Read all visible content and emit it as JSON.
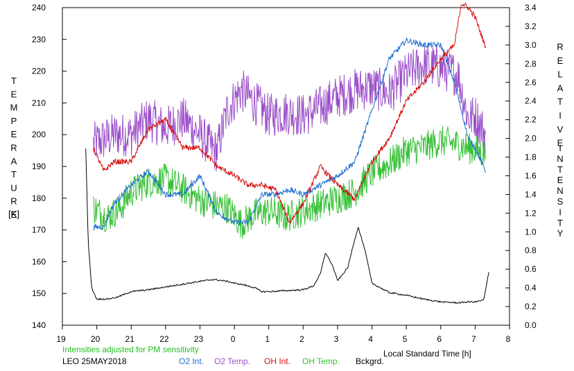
{
  "chart_data": {
    "type": "line",
    "title": "",
    "left_axis": {
      "label_letters": [
        "T",
        "E",
        "M",
        "P",
        "E",
        "R",
        "A",
        "T",
        "U",
        "R",
        "E"
      ],
      "unit": "[K]",
      "ticks": [
        "140",
        "150",
        "160",
        "170",
        "180",
        "190",
        "200",
        "210",
        "220",
        "230",
        "240"
      ],
      "range": [
        140,
        240
      ]
    },
    "right_axis": {
      "label_letters_1": [
        "R",
        "E",
        "L",
        "A",
        "T",
        "I",
        "V",
        "E"
      ],
      "label_letters_2": [
        "I",
        "N",
        "T",
        "E",
        "N",
        "S",
        "I",
        "T",
        "Y"
      ],
      "ticks": [
        "0.0",
        "0.2",
        "0.4",
        "0.6",
        "0.8",
        "1.0",
        "1.2",
        "1.4",
        "1.6",
        "1.8",
        "2.0",
        "2.2",
        "2.4",
        "2.6",
        "2.8",
        "3.0",
        "3.2",
        "3.4"
      ],
      "range": [
        0.0,
        3.4
      ]
    },
    "x_axis": {
      "label": "Local Standard Time [h]",
      "ticks": [
        "19",
        "20",
        "21",
        "22",
        "23",
        "0",
        "1",
        "2",
        "3",
        "4",
        "5",
        "6",
        "7",
        "8"
      ],
      "range_hours": [
        19,
        32
      ]
    },
    "note": "Intensities adjusted for PM sensitivity",
    "station": "LEO  25MAY2018",
    "legend": [
      "O2 Int.",
      "O2 Temp.",
      "OH Int.",
      "OH Temp.",
      "Bckgrd."
    ],
    "colors": {
      "o2_int": "#1e6fd0",
      "o2_temp": "#9a4fc9",
      "oh_int": "#d81010",
      "oh_temp": "#35c035",
      "bckgrd": "#000000",
      "note": "#20c020"
    },
    "series": [
      {
        "key": "o2_temp",
        "axis": "left",
        "noise": 7,
        "x": [
          19.9,
          20.5,
          21.0,
          21.5,
          22.0,
          22.5,
          23.0,
          23.4,
          23.5,
          23.8,
          24.2,
          24.6,
          25.0,
          25.5,
          26.0,
          26.4,
          27.0,
          27.5,
          28.0,
          28.5,
          29.0,
          29.5,
          30.0,
          30.5,
          30.8,
          31.0,
          31.3
        ],
        "y": [
          197,
          200,
          200,
          205,
          202,
          205,
          200,
          195,
          195,
          208,
          214,
          210,
          206,
          207,
          206,
          208,
          212,
          214,
          215,
          213,
          219,
          222,
          221,
          219,
          205,
          206,
          200
        ]
      },
      {
        "key": "oh_temp",
        "axis": "left",
        "noise": 5,
        "x": [
          19.9,
          20.3,
          20.7,
          21.0,
          21.5,
          22.0,
          22.5,
          22.9,
          23.3,
          23.8,
          24.2,
          24.6,
          25.0,
          25.5,
          26.0,
          26.5,
          27.0,
          27.5,
          28.0,
          28.5,
          29.0,
          29.5,
          30.0,
          30.5,
          31.0,
          31.3
        ],
        "y": [
          177,
          174,
          177,
          182,
          185,
          186,
          183,
          180,
          178,
          177,
          172,
          175,
          176,
          174,
          176,
          178,
          180,
          182,
          188,
          191,
          195,
          196,
          198,
          197,
          195,
          194
        ]
      },
      {
        "key": "o2_int",
        "axis": "right",
        "noise": 0.03,
        "x": [
          19.9,
          20.2,
          20.5,
          21.0,
          21.5,
          22.0,
          22.5,
          23.0,
          23.5,
          24.0,
          24.4,
          24.8,
          25.2,
          25.6,
          26.0,
          26.5,
          27.0,
          27.5,
          28.0,
          28.5,
          29.0,
          29.5,
          30.0,
          30.4,
          30.8,
          31.0,
          31.3
        ],
        "y": [
          1.05,
          1.05,
          1.3,
          1.5,
          1.65,
          1.4,
          1.4,
          1.6,
          1.2,
          1.1,
          1.1,
          1.4,
          1.4,
          1.45,
          1.4,
          1.5,
          1.6,
          1.75,
          2.3,
          2.85,
          3.05,
          3.0,
          3.0,
          2.6,
          2.0,
          1.9,
          1.65
        ]
      },
      {
        "key": "oh_int",
        "axis": "right",
        "noise": 0.03,
        "x": [
          19.9,
          20.2,
          20.5,
          21.0,
          21.5,
          22.0,
          22.5,
          23.0,
          23.5,
          24.0,
          24.4,
          24.8,
          25.2,
          25.6,
          26.0,
          26.5,
          27.0,
          27.5,
          28.0,
          28.5,
          29.0,
          29.5,
          30.0,
          30.4,
          30.6,
          30.8,
          31.0,
          31.3
        ],
        "y": [
          1.9,
          1.65,
          1.75,
          1.75,
          2.1,
          2.2,
          1.9,
          1.9,
          1.7,
          1.6,
          1.5,
          1.5,
          1.45,
          1.1,
          1.3,
          1.7,
          1.5,
          1.35,
          1.75,
          2.0,
          2.4,
          2.6,
          2.85,
          3.0,
          3.45,
          3.4,
          3.3,
          2.98
        ]
      },
      {
        "key": "bckgrd",
        "axis": "right",
        "noise": 0.008,
        "x": [
          19.68,
          19.75,
          19.85,
          20.0,
          20.3,
          20.6,
          21.0,
          21.5,
          22.0,
          22.5,
          23.0,
          23.4,
          23.8,
          24.0,
          24.3,
          24.6,
          24.8,
          25.0,
          25.5,
          26.0,
          26.3,
          26.5,
          26.65,
          26.85,
          27.0,
          27.1,
          27.3,
          27.45,
          27.6,
          27.8,
          28.0,
          28.5,
          29.0,
          29.5,
          30.0,
          30.5,
          30.8,
          31.0,
          31.25,
          31.4
        ],
        "y": [
          1.9,
          0.9,
          0.4,
          0.28,
          0.28,
          0.3,
          0.36,
          0.38,
          0.41,
          0.44,
          0.47,
          0.49,
          0.47,
          0.45,
          0.43,
          0.4,
          0.36,
          0.36,
          0.37,
          0.38,
          0.42,
          0.55,
          0.78,
          0.64,
          0.48,
          0.52,
          0.62,
          0.85,
          1.05,
          0.8,
          0.45,
          0.35,
          0.32,
          0.28,
          0.25,
          0.24,
          0.25,
          0.25,
          0.27,
          0.57
        ]
      }
    ]
  }
}
